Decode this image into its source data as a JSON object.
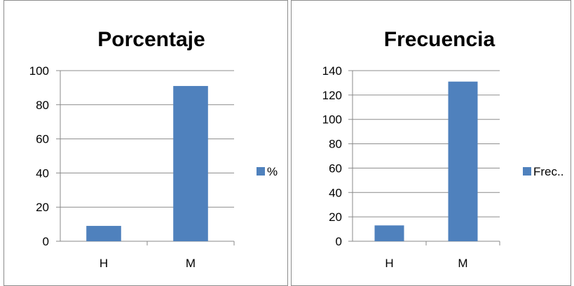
{
  "chart_data": [
    {
      "type": "bar",
      "title": "Porcentaje",
      "categories": [
        "H",
        "M"
      ],
      "series": [
        {
          "name": "%",
          "values": [
            9,
            91
          ]
        }
      ],
      "ylim": [
        0,
        100
      ],
      "yticks": [
        0,
        20,
        40,
        60,
        80,
        100
      ],
      "grid": true,
      "legend": "right",
      "bar_color": "#4f81bd"
    },
    {
      "type": "bar",
      "title": "Frecuencia",
      "categories": [
        "H",
        "M"
      ],
      "series": [
        {
          "name": "Frec..",
          "values": [
            13,
            131
          ]
        }
      ],
      "ylim": [
        0,
        140
      ],
      "yticks": [
        0,
        20,
        40,
        60,
        80,
        100,
        120,
        140
      ],
      "grid": true,
      "legend": "right",
      "bar_color": "#4f81bd"
    }
  ]
}
